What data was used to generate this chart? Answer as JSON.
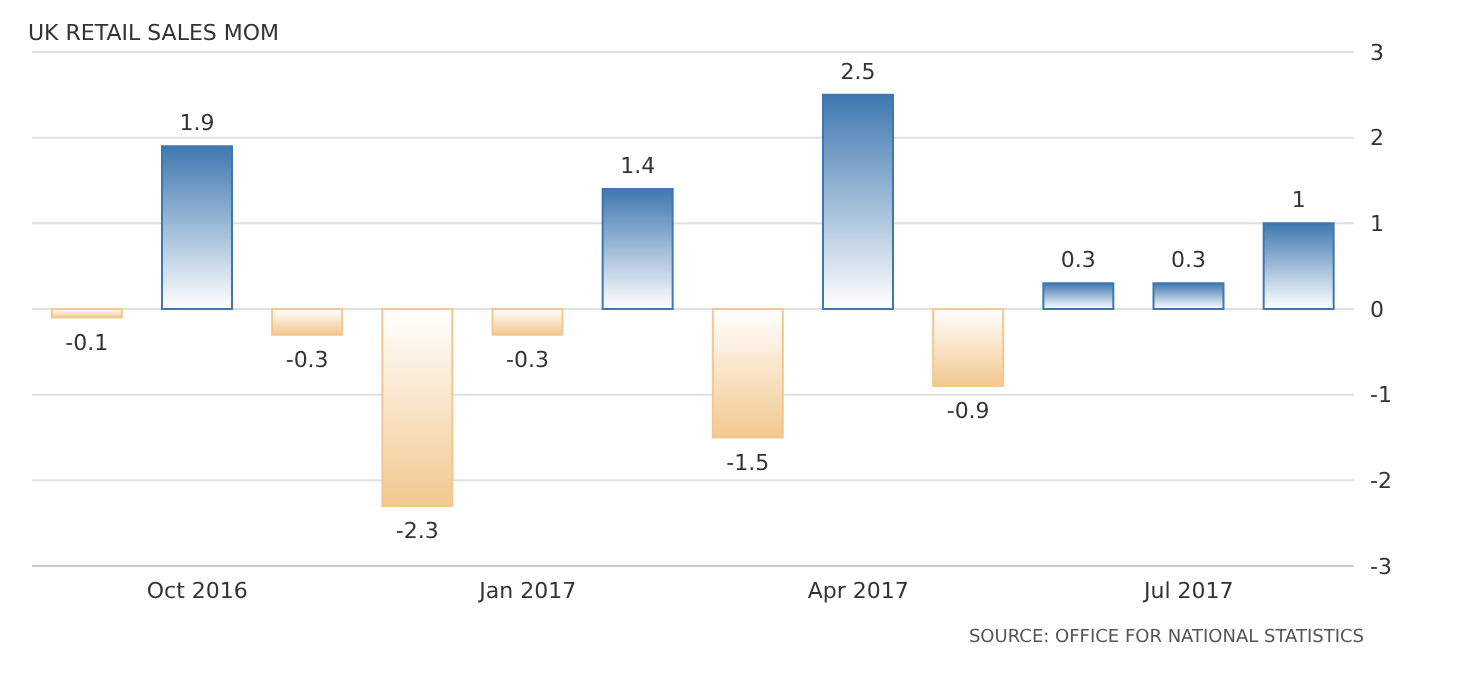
{
  "chart_data": {
    "type": "bar",
    "title": "UK RETAIL SALES MOM",
    "categories": [
      null,
      "Oct 2016",
      null,
      null,
      "Jan 2017",
      null,
      null,
      "Apr 2017",
      null,
      null,
      "Jul 2017",
      null
    ],
    "values": [
      -0.1,
      1.9,
      -0.3,
      -2.3,
      -0.3,
      1.4,
      -1.5,
      2.5,
      -0.9,
      0.3,
      0.3,
      1
    ],
    "colors": [
      "#f2c88e",
      "#3f78b0",
      "#f2c88e",
      "#f2c88e",
      "#f2c88e",
      "#3f78b0",
      "#f2c88e",
      "#3f78b0",
      "#f2c88e",
      "#3f78b0",
      "#3f78b0",
      "#3f78b0"
    ],
    "ylim": [
      -3,
      3
    ],
    "yticks": [
      -3,
      -2,
      -1,
      0,
      1,
      2,
      3
    ],
    "grid": "y",
    "data_labels": true,
    "annotations": [
      "SOURCE: OFFICE FOR NATIONAL STATISTICS"
    ]
  }
}
